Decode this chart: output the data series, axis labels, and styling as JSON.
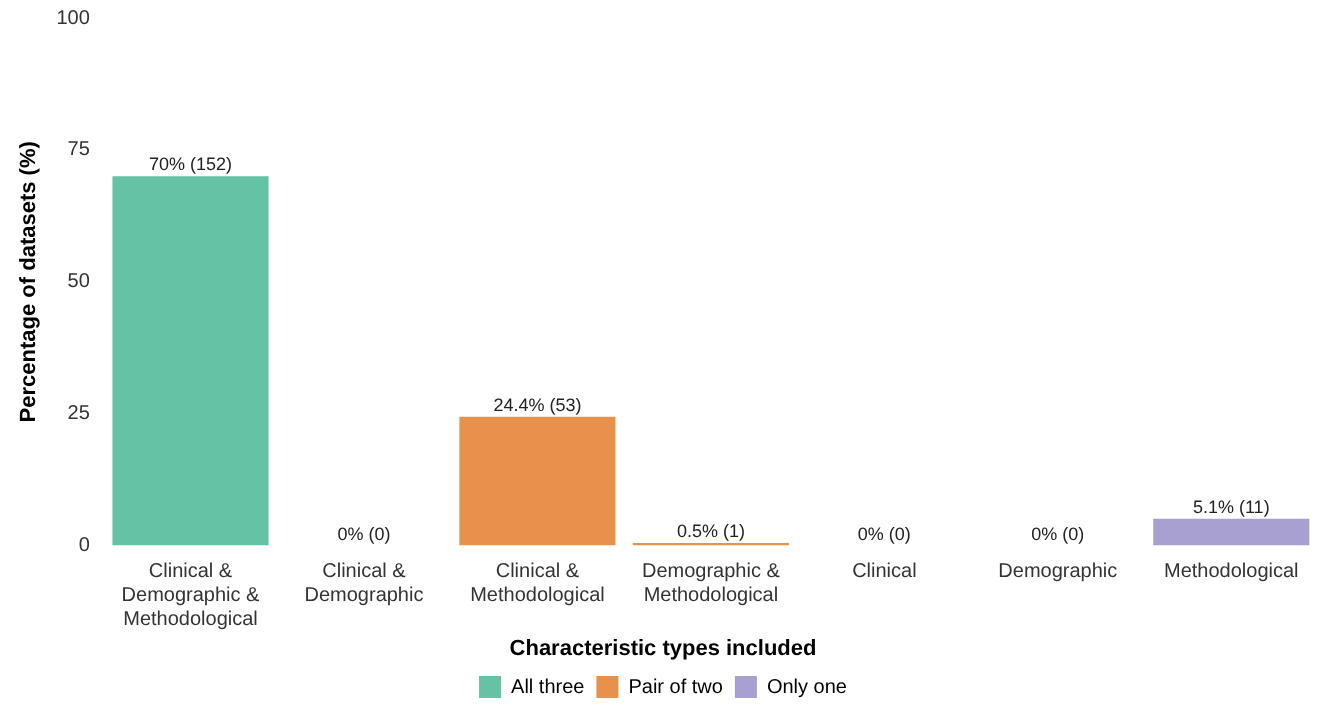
{
  "chart_data": {
    "type": "bar",
    "ylabel": "Percentage of datasets (%)",
    "legend_title": "Characteristic types included",
    "categories": [
      "Clinical & Demographic & Methodological",
      "Clinical & Demographic",
      "Clinical & Methodological",
      "Demographic & Methodological",
      "Clinical",
      "Demographic",
      "Methodological"
    ],
    "series": [
      {
        "name": "All three",
        "color": "#66c2a5",
        "values": [
          70,
          null,
          null,
          null,
          null,
          null,
          null
        ],
        "value_labels": [
          "70% (152)",
          null,
          null,
          null,
          null,
          null,
          null
        ]
      },
      {
        "name": "Pair of two",
        "color": "#e8914a",
        "values": [
          null,
          0,
          24.4,
          0.5,
          null,
          null,
          null
        ],
        "value_labels": [
          null,
          "0% (0)",
          "24.4% (53)",
          "0.5% (1)",
          null,
          null,
          null
        ]
      },
      {
        "name": "Only one",
        "color": "#a9a0d2",
        "values": [
          null,
          null,
          null,
          null,
          0,
          0,
          5.1
        ],
        "value_labels": [
          null,
          null,
          null,
          null,
          "0% (0)",
          "0% (0)",
          "5.1% (11)"
        ]
      }
    ],
    "ylim": [
      0,
      100
    ],
    "yticks": [
      0,
      25,
      50,
      75,
      100
    ],
    "grid": false,
    "legend": "bottom"
  }
}
